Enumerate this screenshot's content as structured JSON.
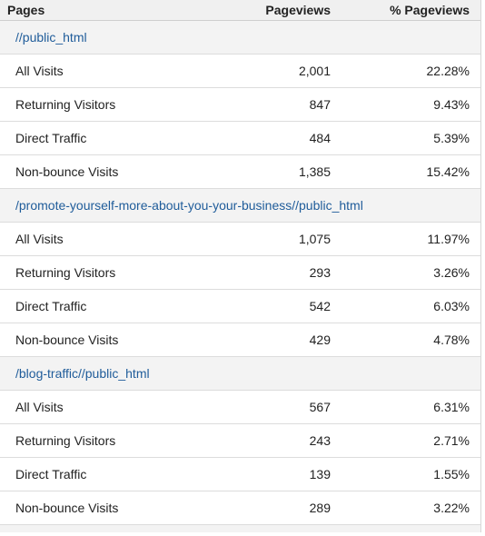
{
  "header": {
    "pages": "Pages",
    "pageviews": "Pageviews",
    "pct_pageviews": "% Pageviews"
  },
  "groups": [
    {
      "page": "//public_html",
      "rows": [
        {
          "segment": "All Visits",
          "pageviews": "2,001",
          "pct": "22.28%"
        },
        {
          "segment": "Returning Visitors",
          "pageviews": "847",
          "pct": "9.43%"
        },
        {
          "segment": "Direct Traffic",
          "pageviews": "484",
          "pct": "5.39%"
        },
        {
          "segment": "Non-bounce Visits",
          "pageviews": "1,385",
          "pct": "15.42%"
        }
      ]
    },
    {
      "page": "/promote-yourself-more-about-you-your-business//public_html",
      "rows": [
        {
          "segment": "All Visits",
          "pageviews": "1,075",
          "pct": "11.97%"
        },
        {
          "segment": "Returning Visitors",
          "pageviews": "293",
          "pct": "3.26%"
        },
        {
          "segment": "Direct Traffic",
          "pageviews": "542",
          "pct": "6.03%"
        },
        {
          "segment": "Non-bounce Visits",
          "pageviews": "429",
          "pct": "4.78%"
        }
      ]
    },
    {
      "page": "/blog-traffic//public_html",
      "rows": [
        {
          "segment": "All Visits",
          "pageviews": "567",
          "pct": "6.31%"
        },
        {
          "segment": "Returning Visitors",
          "pageviews": "243",
          "pct": "2.71%"
        },
        {
          "segment": "Direct Traffic",
          "pageviews": "139",
          "pct": "1.55%"
        },
        {
          "segment": "Non-bounce Visits",
          "pageviews": "289",
          "pct": "3.22%"
        }
      ]
    }
  ],
  "colors": {
    "link": "#1f5c9a",
    "header_bg": "#f0f0f0",
    "group_bg": "#f3f3f3"
  }
}
